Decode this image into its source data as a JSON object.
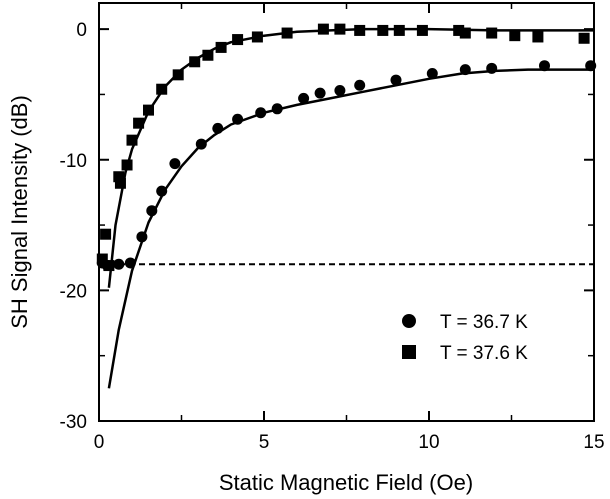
{
  "chart_data": {
    "type": "scatter",
    "title": "",
    "xlabel": "Static Magnetic Field (Oe)",
    "ylabel": "SH Signal Intensity (dB)",
    "xlim": [
      0,
      15
    ],
    "ylim": [
      -30,
      2
    ],
    "x_ticks": [
      "0",
      "5",
      "10",
      "15"
    ],
    "y_ticks": [
      "0",
      "-10",
      "-20",
      "-30"
    ],
    "x_tick_values": [
      0,
      5,
      10,
      15
    ],
    "y_tick_values": [
      0,
      -10,
      -20,
      -30
    ],
    "grid": false,
    "legend_position": "bottom-right",
    "reference_line": {
      "style": "dashed",
      "y": -18
    },
    "series": [
      {
        "name": "T = 36.7 K",
        "marker": "circle",
        "points": [
          [
            0.1,
            -17.9
          ],
          [
            0.25,
            -18.1
          ],
          [
            0.6,
            -18.0
          ],
          [
            0.95,
            -17.9
          ],
          [
            1.3,
            -15.9
          ],
          [
            1.6,
            -13.9
          ],
          [
            1.9,
            -12.4
          ],
          [
            2.3,
            -10.3
          ],
          [
            3.1,
            -8.8
          ],
          [
            3.6,
            -7.6
          ],
          [
            4.2,
            -6.9
          ],
          [
            4.9,
            -6.4
          ],
          [
            5.4,
            -6.1
          ],
          [
            6.2,
            -5.3
          ],
          [
            6.7,
            -4.9
          ],
          [
            7.3,
            -4.7
          ],
          [
            7.9,
            -4.3
          ],
          [
            9.0,
            -3.9
          ],
          [
            10.1,
            -3.4
          ],
          [
            11.1,
            -3.1
          ],
          [
            11.9,
            -3.0
          ],
          [
            13.5,
            -2.8
          ],
          [
            14.9,
            -2.8
          ]
        ],
        "fit": [
          [
            0.3,
            -27.5
          ],
          [
            0.6,
            -23.0
          ],
          [
            1.0,
            -18.5
          ],
          [
            1.5,
            -14.8
          ],
          [
            2.0,
            -12.3
          ],
          [
            2.5,
            -10.5
          ],
          [
            3.0,
            -9.1
          ],
          [
            3.5,
            -8.1
          ],
          [
            4.0,
            -7.3
          ],
          [
            5.0,
            -6.4
          ],
          [
            6.0,
            -5.8
          ],
          [
            7.0,
            -5.3
          ],
          [
            8.0,
            -4.8
          ],
          [
            9.0,
            -4.3
          ],
          [
            10.0,
            -3.8
          ],
          [
            11.0,
            -3.4
          ],
          [
            12.0,
            -3.2
          ],
          [
            13.0,
            -3.1
          ],
          [
            14.0,
            -3.1
          ],
          [
            15.0,
            -3.1
          ]
        ]
      },
      {
        "name": "T = 37.6 K",
        "marker": "square",
        "points": [
          [
            0.1,
            -17.6
          ],
          [
            0.2,
            -15.7
          ],
          [
            0.3,
            -18.1
          ],
          [
            0.6,
            -11.3
          ],
          [
            0.65,
            -11.8
          ],
          [
            0.85,
            -10.4
          ],
          [
            1.0,
            -8.5
          ],
          [
            1.2,
            -7.2
          ],
          [
            1.5,
            -6.2
          ],
          [
            1.9,
            -4.6
          ],
          [
            2.4,
            -3.5
          ],
          [
            2.9,
            -2.5
          ],
          [
            3.3,
            -2.0
          ],
          [
            3.7,
            -1.4
          ],
          [
            4.2,
            -0.8
          ],
          [
            4.8,
            -0.6
          ],
          [
            5.7,
            -0.3
          ],
          [
            6.8,
            0
          ],
          [
            7.3,
            0
          ],
          [
            7.9,
            -0.1
          ],
          [
            8.6,
            -0.1
          ],
          [
            9.1,
            -0.1
          ],
          [
            9.8,
            -0.1
          ],
          [
            10.9,
            -0.1
          ],
          [
            11.1,
            -0.3
          ],
          [
            11.9,
            -0.3
          ],
          [
            12.6,
            -0.5
          ],
          [
            13.3,
            -0.6
          ],
          [
            14.7,
            -0.7
          ]
        ],
        "fit": [
          [
            0.3,
            -19.8
          ],
          [
            0.5,
            -15.0
          ],
          [
            0.8,
            -11.0
          ],
          [
            1.0,
            -9.2
          ],
          [
            1.5,
            -6.3
          ],
          [
            2.0,
            -4.4
          ],
          [
            2.5,
            -3.1
          ],
          [
            3.0,
            -2.2
          ],
          [
            3.5,
            -1.5
          ],
          [
            4.0,
            -1.0
          ],
          [
            5.0,
            -0.5
          ],
          [
            6.0,
            -0.2
          ],
          [
            7.0,
            -0.1
          ],
          [
            8.0,
            0
          ],
          [
            10.0,
            0
          ],
          [
            12.0,
            -0.1
          ],
          [
            15.0,
            -0.1
          ]
        ]
      }
    ]
  }
}
